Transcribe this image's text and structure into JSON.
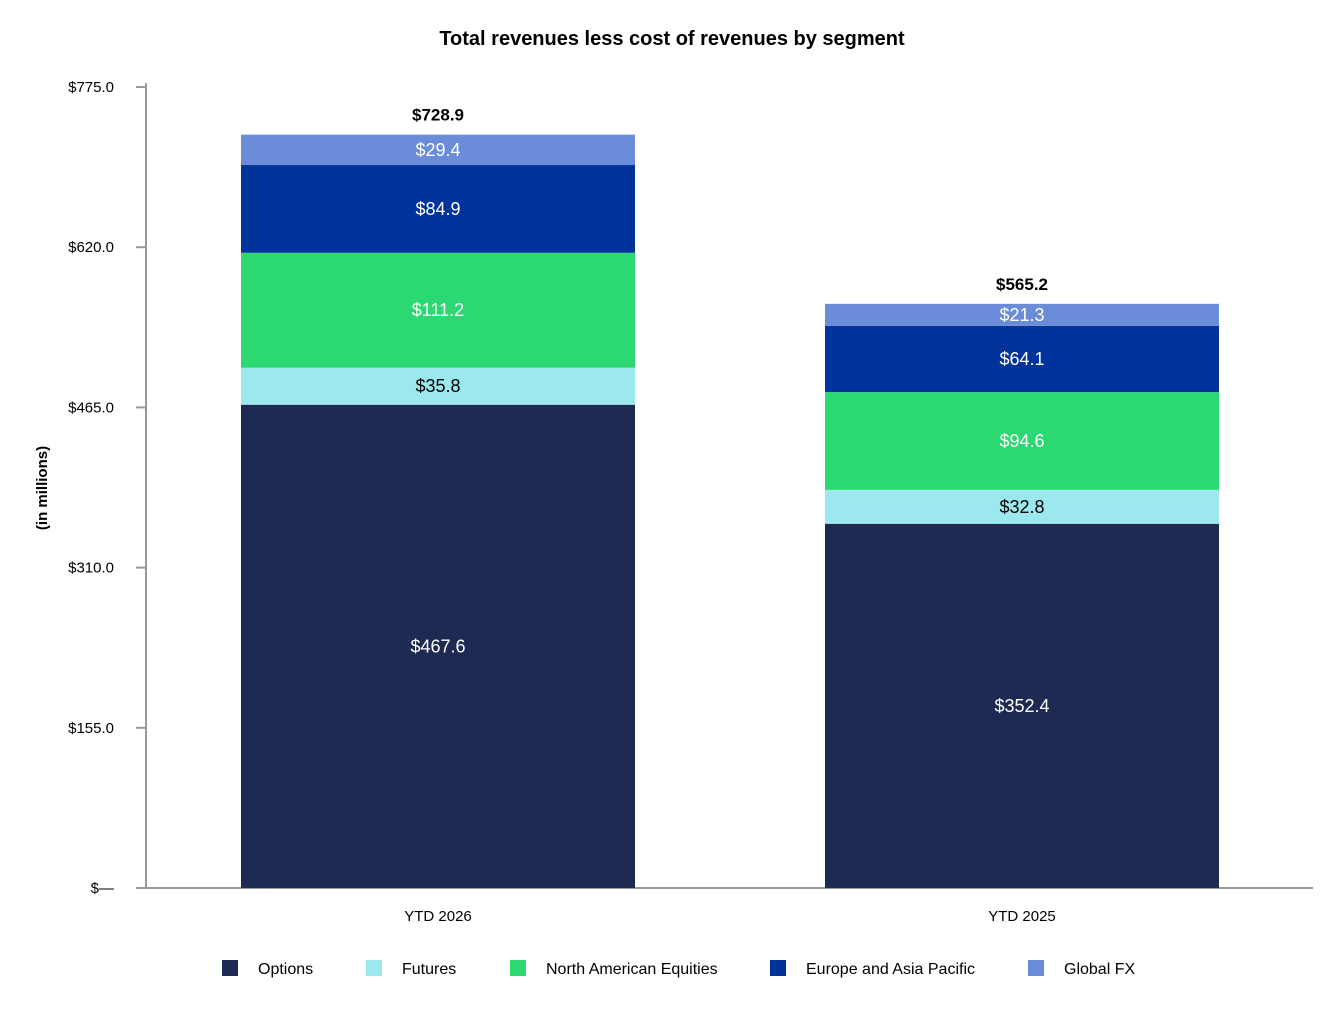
{
  "chart_data": {
    "type": "bar",
    "stacked": true,
    "title": "Total revenues less cost of revenues by segment",
    "xlabel": "",
    "ylabel": "(in millions)",
    "ylim": [
      0,
      775
    ],
    "y_ticks": [
      0,
      155,
      310,
      465,
      620,
      775
    ],
    "y_tick_labels": [
      "$—",
      "$155.0",
      "$310.0",
      "$465.0",
      "$620.0",
      "$775.0"
    ],
    "categories": [
      "YTD 2026",
      "YTD 2025"
    ],
    "series": [
      {
        "name": "Options",
        "color": "#1f2a52",
        "label_color": "#ffffff",
        "values": [
          467.6,
          352.4
        ],
        "labels": [
          "$467.6",
          "$352.4"
        ]
      },
      {
        "name": "Futures",
        "color": "#9ce8ef",
        "label_color": "#000000",
        "values": [
          35.8,
          32.8
        ],
        "labels": [
          "$35.8",
          "$32.8"
        ]
      },
      {
        "name": "North American Equities",
        "color": "#2bd872",
        "label_color": "#ffffff",
        "values": [
          111.2,
          94.6
        ],
        "labels": [
          "$111.2",
          "$94.6"
        ]
      },
      {
        "name": "Europe and Asia Pacific",
        "color": "#01339a",
        "label_color": "#ffffff",
        "values": [
          84.9,
          64.1
        ],
        "labels": [
          "$84.9",
          "$64.1"
        ]
      },
      {
        "name": "Global FX",
        "color": "#6a8cd9",
        "label_color": "#ffffff",
        "values": [
          29.4,
          21.3
        ],
        "labels": [
          "$29.4",
          "$21.3"
        ]
      }
    ],
    "totals": [
      728.9,
      565.2
    ],
    "total_labels": [
      "$728.9",
      "$565.2"
    ],
    "grid": false,
    "legend_position": "bottom"
  }
}
